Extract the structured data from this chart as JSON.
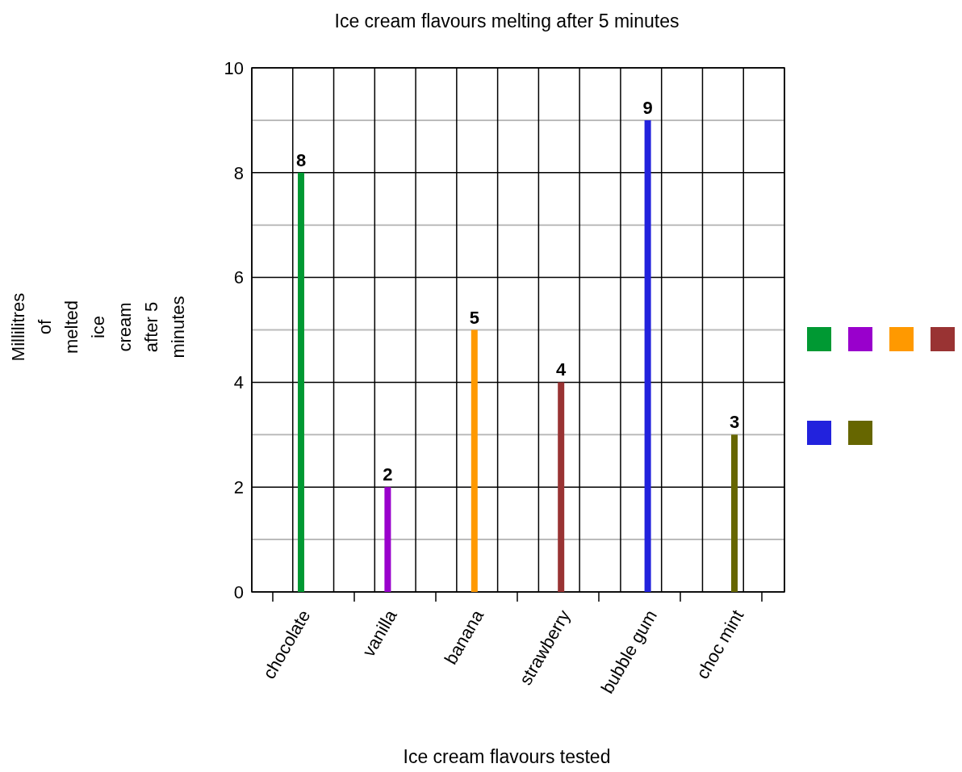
{
  "chart_data": {
    "type": "bar",
    "title": "Ice cream flavours melting after 5 minutes",
    "xlabel": "Ice cream flavours tested",
    "ylabel": "Millilitres of melted ice cream after 5 minutes",
    "categories": [
      "chocolate",
      "vanilla",
      "banana",
      "strawberry",
      "bubble gum",
      "choc mint"
    ],
    "values": [
      8,
      2,
      5,
      4,
      9,
      3
    ],
    "colors": [
      "#009933",
      "#9900cc",
      "#ff9900",
      "#993333",
      "#2222dd",
      "#666600"
    ],
    "ylim": [
      0,
      10
    ],
    "yticks": [
      0,
      2,
      4,
      6,
      8,
      10
    ],
    "grid": true,
    "data_labels": true
  }
}
